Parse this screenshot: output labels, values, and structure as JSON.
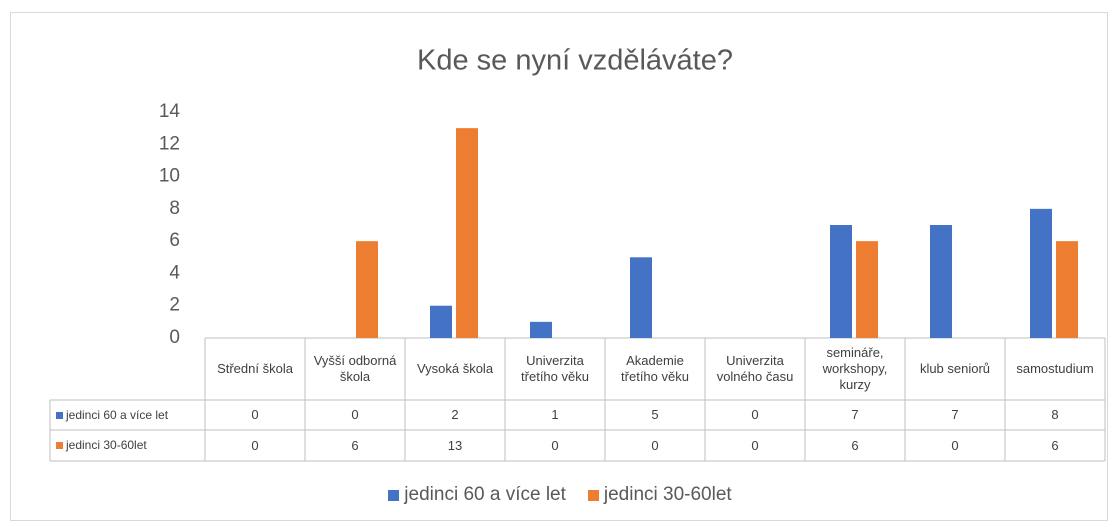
{
  "chart_data": {
    "type": "bar",
    "title": "Kde se nyní vzděláváte?",
    "categories": [
      "Střední škola",
      "Vyšší odborná škola",
      "Vysoká škola",
      "Univerzita třetího věku",
      "Akademie třetího věku",
      "Univerzita volného času",
      "semináře, workshopy, kurzy",
      "klub seniorů",
      "samostudium"
    ],
    "series": [
      {
        "name": "jedinci 60 a více let",
        "color": "#4472c4",
        "values": [
          0,
          0,
          2,
          1,
          5,
          0,
          7,
          7,
          8
        ]
      },
      {
        "name": "jedinci 30-60let",
        "color": "#ed7d31",
        "values": [
          0,
          6,
          13,
          0,
          0,
          0,
          6,
          0,
          6
        ]
      }
    ],
    "ylim": [
      0,
      14
    ],
    "yticks": [
      0,
      2,
      4,
      6,
      8,
      10,
      12,
      14
    ],
    "grid": false,
    "legend": "bottom"
  }
}
